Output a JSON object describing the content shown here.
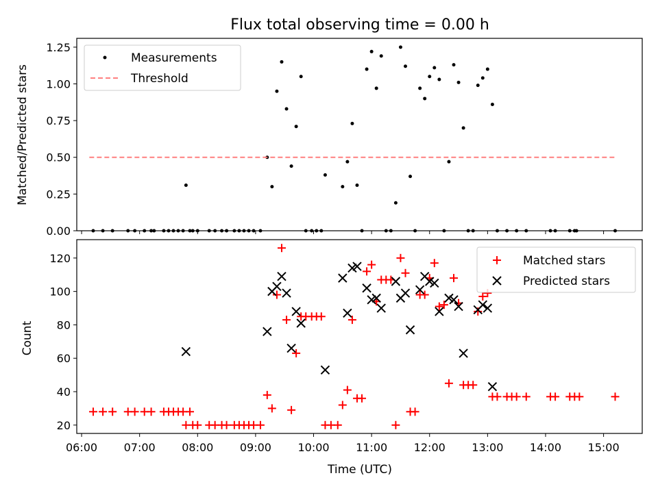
{
  "figure": {
    "title": "Flux total observing time = 0.00 h",
    "xlabel": "Time (UTC)",
    "xticks": [
      "06:00",
      "07:00",
      "08:00",
      "09:00",
      "10:00",
      "11:00",
      "12:00",
      "13:00",
      "14:00",
      "15:00"
    ]
  },
  "chart_data": [
    {
      "type": "scatter",
      "ylabel": "Matched/Predicted stars",
      "xlim": [
        "05:55",
        "15:40"
      ],
      "ylim": [
        0,
        1.31
      ],
      "yticks": [
        "0.00",
        "0.25",
        "0.50",
        "0.75",
        "1.00",
        "1.25"
      ],
      "legend": {
        "placement": "top-left",
        "entries": [
          "Measurements",
          "Threshold"
        ]
      },
      "colors": {
        "measurements": "#000000",
        "threshold": "#ff7f7f"
      },
      "series": [
        {
          "name": "Measurements",
          "points": [
            [
              "06:12",
              0
            ],
            [
              "06:22",
              0
            ],
            [
              "06:32",
              0
            ],
            [
              "06:48",
              0
            ],
            [
              "06:55",
              0
            ],
            [
              "07:05",
              0
            ],
            [
              "07:12",
              0
            ],
            [
              "07:15",
              0
            ],
            [
              "07:25",
              0
            ],
            [
              "07:30",
              0
            ],
            [
              "07:35",
              0
            ],
            [
              "07:40",
              0
            ],
            [
              "07:45",
              0
            ],
            [
              "07:52",
              0
            ],
            [
              "07:48",
              0.31
            ],
            [
              "07:55",
              0
            ],
            [
              "08:00",
              0
            ],
            [
              "08:12",
              0
            ],
            [
              "08:18",
              0
            ],
            [
              "08:25",
              0
            ],
            [
              "08:30",
              0
            ],
            [
              "08:38",
              0
            ],
            [
              "08:43",
              0
            ],
            [
              "08:48",
              0
            ],
            [
              "08:53",
              0
            ],
            [
              "08:58",
              0
            ],
            [
              "09:05",
              0
            ],
            [
              "09:12",
              0.5
            ],
            [
              "09:17",
              0.3
            ],
            [
              "09:22",
              0.95
            ],
            [
              "09:27",
              1.15
            ],
            [
              "09:32",
              0.83
            ],
            [
              "09:37",
              0.44
            ],
            [
              "09:42",
              0.71
            ],
            [
              "09:47",
              1.05
            ],
            [
              "09:52",
              0
            ],
            [
              "09:58",
              0
            ],
            [
              "10:03",
              0
            ],
            [
              "10:08",
              0
            ],
            [
              "10:12",
              0.38
            ],
            [
              "10:30",
              0.3
            ],
            [
              "10:35",
              0.47
            ],
            [
              "10:40",
              0.73
            ],
            [
              "10:45",
              0.31
            ],
            [
              "10:50",
              0
            ],
            [
              "10:55",
              1.1
            ],
            [
              "11:00",
              1.22
            ],
            [
              "11:05",
              0.97
            ],
            [
              "11:10",
              1.19
            ],
            [
              "11:15",
              0
            ],
            [
              "11:20",
              0
            ],
            [
              "11:25",
              0.19
            ],
            [
              "11:30",
              1.25
            ],
            [
              "11:35",
              1.12
            ],
            [
              "11:40",
              0.37
            ],
            [
              "11:45",
              0
            ],
            [
              "11:50",
              0.97
            ],
            [
              "11:55",
              0.9
            ],
            [
              "12:00",
              1.05
            ],
            [
              "12:05",
              1.11
            ],
            [
              "12:10",
              1.03
            ],
            [
              "12:15",
              0
            ],
            [
              "12:20",
              0.47
            ],
            [
              "12:25",
              1.13
            ],
            [
              "12:30",
              1.01
            ],
            [
              "12:35",
              0.7
            ],
            [
              "12:40",
              0
            ],
            [
              "12:45",
              0
            ],
            [
              "12:50",
              0.99
            ],
            [
              "12:55",
              1.04
            ],
            [
              "13:00",
              1.1
            ],
            [
              "13:05",
              0.86
            ],
            [
              "13:10",
              0
            ],
            [
              "13:20",
              0
            ],
            [
              "13:30",
              0
            ],
            [
              "13:40",
              0
            ],
            [
              "14:05",
              0
            ],
            [
              "14:10",
              0
            ],
            [
              "14:25",
              0
            ],
            [
              "14:30",
              0
            ],
            [
              "14:32",
              0
            ],
            [
              "15:12",
              0
            ]
          ]
        },
        {
          "name": "Threshold",
          "points": [
            [
              "06:08",
              0.5
            ],
            [
              "15:12",
              0.5
            ]
          ]
        }
      ]
    },
    {
      "type": "scatter",
      "ylabel": "Count",
      "xlim": [
        "05:55",
        "15:40"
      ],
      "ylim": [
        15,
        131
      ],
      "yticks": [
        "20",
        "40",
        "60",
        "80",
        "100",
        "120"
      ],
      "legend": {
        "placement": "top-right",
        "entries": [
          "Matched stars",
          "Predicted stars"
        ]
      },
      "colors": {
        "matched": "#ff0000",
        "predicted": "#000000"
      },
      "series": [
        {
          "name": "Matched stars",
          "points": [
            [
              "06:12",
              28
            ],
            [
              "06:22",
              28
            ],
            [
              "06:32",
              28
            ],
            [
              "06:48",
              28
            ],
            [
              "06:55",
              28
            ],
            [
              "07:05",
              28
            ],
            [
              "07:12",
              28
            ],
            [
              "07:25",
              28
            ],
            [
              "07:30",
              28
            ],
            [
              "07:35",
              28
            ],
            [
              "07:40",
              28
            ],
            [
              "07:45",
              28
            ],
            [
              "07:52",
              28
            ],
            [
              "07:48",
              20
            ],
            [
              "07:55",
              20
            ],
            [
              "08:00",
              20
            ],
            [
              "08:12",
              20
            ],
            [
              "08:18",
              20
            ],
            [
              "08:25",
              20
            ],
            [
              "08:30",
              20
            ],
            [
              "08:38",
              20
            ],
            [
              "08:43",
              20
            ],
            [
              "08:48",
              20
            ],
            [
              "08:53",
              20
            ],
            [
              "08:58",
              20
            ],
            [
              "09:05",
              20
            ],
            [
              "09:12",
              38
            ],
            [
              "09:17",
              30
            ],
            [
              "09:22",
              98
            ],
            [
              "09:27",
              126
            ],
            [
              "09:32",
              83
            ],
            [
              "09:37",
              29
            ],
            [
              "09:42",
              63
            ],
            [
              "09:47",
              85
            ],
            [
              "09:52",
              85
            ],
            [
              "09:58",
              85
            ],
            [
              "10:03",
              85
            ],
            [
              "10:08",
              85
            ],
            [
              "10:12",
              20
            ],
            [
              "10:18",
              20
            ],
            [
              "10:25",
              20
            ],
            [
              "10:30",
              32
            ],
            [
              "10:35",
              41
            ],
            [
              "10:40",
              83
            ],
            [
              "10:45",
              36
            ],
            [
              "10:50",
              36
            ],
            [
              "10:55",
              112
            ],
            [
              "11:00",
              116
            ],
            [
              "11:05",
              94
            ],
            [
              "11:10",
              107
            ],
            [
              "11:15",
              107
            ],
            [
              "11:20",
              107
            ],
            [
              "11:25",
              20
            ],
            [
              "11:30",
              120
            ],
            [
              "11:35",
              111
            ],
            [
              "11:40",
              28
            ],
            [
              "11:45",
              28
            ],
            [
              "11:50",
              98
            ],
            [
              "11:55",
              98
            ],
            [
              "12:00",
              108
            ],
            [
              "12:05",
              117
            ],
            [
              "12:10",
              91
            ],
            [
              "12:15",
              92
            ],
            [
              "12:20",
              45
            ],
            [
              "12:25",
              108
            ],
            [
              "12:30",
              93
            ],
            [
              "12:35",
              44
            ],
            [
              "12:40",
              44
            ],
            [
              "12:45",
              44
            ],
            [
              "12:50",
              88
            ],
            [
              "12:55",
              97
            ],
            [
              "13:00",
              99
            ],
            [
              "13:05",
              37
            ],
            [
              "13:10",
              37
            ],
            [
              "13:20",
              37
            ],
            [
              "13:25",
              37
            ],
            [
              "13:30",
              37
            ],
            [
              "13:40",
              37
            ],
            [
              "14:05",
              37
            ],
            [
              "14:10",
              37
            ],
            [
              "14:25",
              37
            ],
            [
              "14:30",
              37
            ],
            [
              "14:35",
              37
            ],
            [
              "15:12",
              37
            ]
          ]
        },
        {
          "name": "Predicted stars",
          "points": [
            [
              "07:48",
              64
            ],
            [
              "09:12",
              76
            ],
            [
              "09:17",
              100
            ],
            [
              "09:22",
              103
            ],
            [
              "09:27",
              109
            ],
            [
              "09:32",
              99
            ],
            [
              "09:37",
              66
            ],
            [
              "09:42",
              88
            ],
            [
              "09:47",
              81
            ],
            [
              "10:12",
              53
            ],
            [
              "10:30",
              108
            ],
            [
              "10:35",
              87
            ],
            [
              "10:40",
              114
            ],
            [
              "10:45",
              115
            ],
            [
              "10:55",
              102
            ],
            [
              "11:00",
              95
            ],
            [
              "11:05",
              96
            ],
            [
              "11:10",
              90
            ],
            [
              "11:25",
              106
            ],
            [
              "11:30",
              96
            ],
            [
              "11:35",
              99
            ],
            [
              "11:40",
              77
            ],
            [
              "11:50",
              101
            ],
            [
              "11:55",
              109
            ],
            [
              "12:00",
              106
            ],
            [
              "12:05",
              105
            ],
            [
              "12:10",
              88
            ],
            [
              "12:20",
              96
            ],
            [
              "12:25",
              95
            ],
            [
              "12:30",
              91
            ],
            [
              "12:35",
              63
            ],
            [
              "12:50",
              89
            ],
            [
              "12:55",
              92
            ],
            [
              "13:00",
              90
            ],
            [
              "13:05",
              43
            ]
          ]
        }
      ]
    }
  ]
}
